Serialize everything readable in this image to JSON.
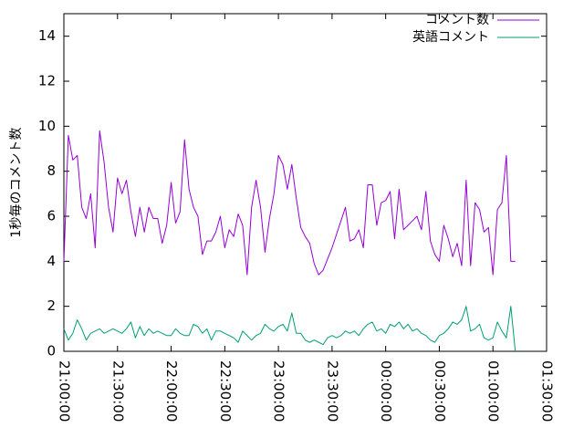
{
  "chart_data": {
    "type": "line",
    "ylabel": "1秒毎のコメント数",
    "xlabel": "",
    "ylim": [
      0,
      15
    ],
    "yticks": [
      0,
      2,
      4,
      6,
      8,
      10,
      12,
      14
    ],
    "xlim": [
      "21:00:00",
      "01:30:00"
    ],
    "xticks": [
      "21:00:00",
      "21:30:00",
      "22:00:00",
      "22:30:00",
      "23:00:00",
      "23:30:00",
      "00:00:00",
      "00:30:00",
      "01:00:00",
      "01:30:00"
    ],
    "legend_position": "top-right",
    "grid": false,
    "x_step_minutes": 2.5,
    "series": [
      {
        "name": "コメント数",
        "color": "#9400d3",
        "values": [
          4.0,
          9.6,
          8.5,
          8.7,
          6.4,
          5.9,
          7.0,
          4.6,
          9.8,
          8.4,
          6.4,
          5.3,
          7.7,
          7.0,
          7.6,
          6.2,
          5.1,
          6.4,
          5.3,
          6.4,
          5.9,
          5.9,
          4.8,
          5.6,
          7.5,
          5.7,
          6.2,
          9.4,
          7.2,
          6.4,
          6.0,
          4.3,
          4.9,
          4.9,
          5.3,
          6.0,
          4.6,
          5.4,
          5.1,
          6.1,
          5.6,
          3.4,
          6.4,
          7.6,
          6.4,
          4.4,
          5.9,
          7.0,
          8.7,
          8.3,
          7.2,
          8.3,
          6.8,
          5.5,
          5.1,
          4.8,
          3.9,
          3.4,
          3.6,
          4.1,
          4.6,
          5.2,
          5.8,
          6.4,
          4.9,
          5.0,
          5.4,
          4.6,
          7.4,
          7.4,
          5.6,
          6.6,
          6.7,
          7.1,
          5.0,
          7.2,
          5.4,
          5.6,
          5.8,
          6.0,
          5.4,
          7.1,
          4.9,
          4.3,
          4.0,
          5.6,
          5.0,
          4.2,
          4.8,
          3.8,
          7.6,
          3.8,
          6.6,
          6.3,
          5.3,
          5.5,
          3.4,
          6.3,
          6.6,
          8.7,
          4.0,
          4.0
        ]
      },
      {
        "name": "英語コメント",
        "color": "#009e73",
        "values": [
          1.0,
          0.5,
          0.8,
          1.4,
          1.0,
          0.5,
          0.8,
          0.9,
          1.0,
          0.8,
          0.9,
          1.0,
          0.9,
          0.8,
          1.0,
          1.3,
          0.6,
          1.1,
          0.7,
          1.0,
          0.8,
          0.9,
          0.8,
          0.7,
          0.7,
          1.0,
          0.8,
          0.7,
          0.7,
          1.2,
          1.1,
          0.8,
          1.0,
          0.5,
          0.9,
          0.9,
          0.8,
          0.7,
          0.6,
          0.4,
          0.9,
          0.7,
          0.5,
          0.7,
          0.8,
          1.2,
          1.0,
          0.9,
          1.1,
          1.2,
          0.9,
          1.7,
          0.8,
          0.8,
          0.5,
          0.4,
          0.5,
          0.4,
          0.3,
          0.6,
          0.7,
          0.6,
          0.7,
          0.9,
          0.8,
          0.9,
          0.7,
          1.0,
          1.2,
          1.3,
          0.9,
          1.0,
          0.8,
          1.2,
          1.1,
          1.3,
          1.0,
          1.2,
          0.9,
          1.0,
          0.8,
          0.7,
          0.5,
          0.4,
          0.7,
          0.8,
          1.0,
          1.3,
          1.2,
          1.4,
          2.0,
          0.9,
          1.0,
          1.2,
          0.6,
          0.5,
          0.6,
          1.3,
          0.9,
          0.6,
          2.0,
          0.0
        ]
      }
    ]
  }
}
